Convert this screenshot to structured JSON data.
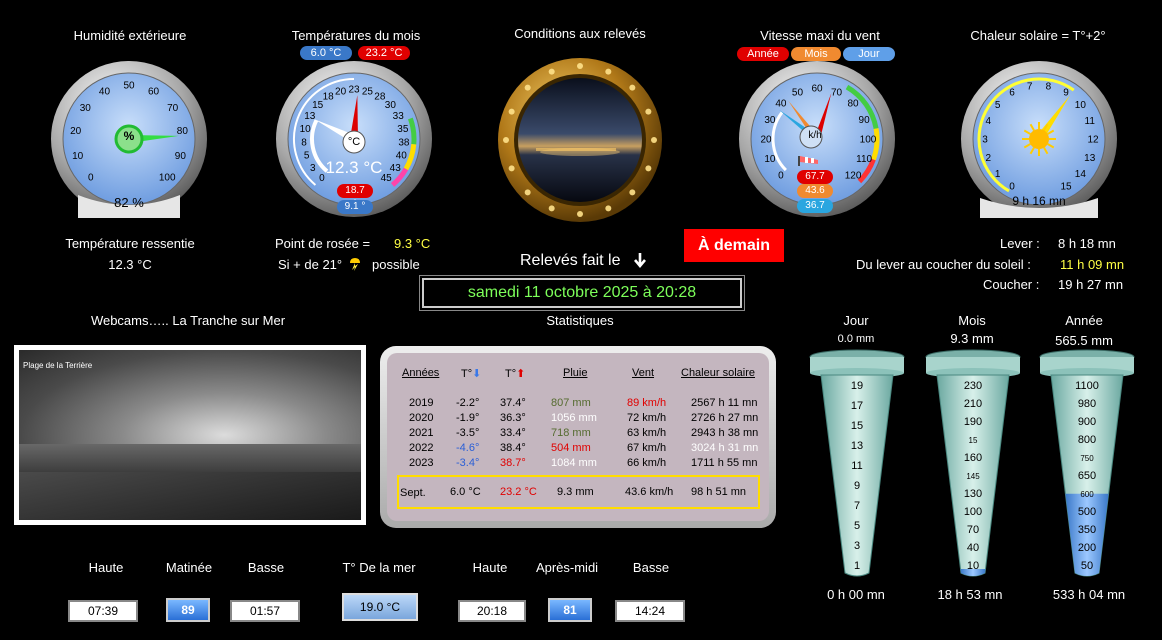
{
  "humidity": {
    "title": "Humidité extérieure",
    "unit": "%",
    "value": 82,
    "value_text": "82 %",
    "ticks": [
      "0",
      "10",
      "20",
      "30",
      "40",
      "50",
      "60",
      "70",
      "80",
      "90",
      "100"
    ]
  },
  "temp_month": {
    "title": "Températures du mois",
    "min": "6.0 °C",
    "max": "23.2 °C",
    "unit": "°C",
    "current": "12.3 °C",
    "current_value": 12.3,
    "max_value": 23.2,
    "badge_high": "18.7 °",
    "badge_low": "9.1 °",
    "ticks": [
      "0",
      "3",
      "5",
      "8",
      "10",
      "13",
      "15",
      "18",
      "20",
      "23",
      "25",
      "28",
      "30",
      "33",
      "35",
      "38",
      "40",
      "43",
      "45"
    ]
  },
  "conditions": {
    "title": "Conditions aux relevés"
  },
  "wind": {
    "title": "Vitesse maxi du vent",
    "labels": [
      "Année",
      "Mois",
      "Jour"
    ],
    "unit": "k/h",
    "value": 36.7,
    "badges": [
      "67.7",
      "43.6",
      "36.7"
    ],
    "ticks": [
      "0",
      "10",
      "20",
      "30",
      "40",
      "50",
      "60",
      "70",
      "80",
      "90",
      "100",
      "110",
      "120"
    ]
  },
  "solar": {
    "title": "Chaleur solaire = T°+2°",
    "value_text": "9 h 16 mn",
    "value": 9.27,
    "ticks": [
      "0",
      "1",
      "2",
      "3",
      "4",
      "5",
      "6",
      "7",
      "8",
      "9",
      "10",
      "11",
      "12",
      "13",
      "14",
      "15"
    ]
  },
  "felt_temp": {
    "label": "Température ressentie",
    "value": "12.3 °C"
  },
  "dew_point": {
    "label": "Point de rosée  =",
    "value": "9.3 °C",
    "storm_prefix": "Si + de 21°",
    "storm_suffix": "possible"
  },
  "reading": {
    "label": "Relevés fait le",
    "date": "samedi 11 octobre 2025 à 20:28"
  },
  "tomorrow_button": "À demain",
  "sun": {
    "rise_label": "Lever :",
    "rise": "8 h 18 mn",
    "duration_label": "Du lever au coucher du soleil :",
    "duration": "11 h 09 mn",
    "set_label": "Coucher :",
    "set": "19 h 27 mn"
  },
  "webcam": {
    "title": "Webcams….. La Tranche sur Mer",
    "caption": "Plage de la Terrière"
  },
  "stats": {
    "title": "Statistiques",
    "headers": [
      "Années",
      "T°",
      "T°",
      "Pluie",
      "Vent",
      "Chaleur solaire"
    ],
    "rows": [
      {
        "year": "2019",
        "tmin": "-2.2°",
        "tmax": "37.4°",
        "rain": "807 mm",
        "wind": "89 km/h",
        "solar": "2567 h 11 mn"
      },
      {
        "year": "2020",
        "tmin": "-1.9°",
        "tmax": "36.3°",
        "rain": "1056 mm",
        "wind": "72 km/h",
        "solar": "2726 h 27 mn"
      },
      {
        "year": "2021",
        "tmin": "-3.5°",
        "tmax": "33.4°",
        "rain": "718 mm",
        "wind": "63 km/h",
        "solar": "2943 h 38 mn"
      },
      {
        "year": "2022",
        "tmin": "-4.6°",
        "tmax": "38.4°",
        "rain": "504 mm",
        "wind": "67 km/h",
        "solar": "3024 h 31 mn"
      },
      {
        "year": "2023",
        "tmin": "-3.4°",
        "tmax": "38.7°",
        "rain": "1084 mm",
        "wind": "66 km/h",
        "solar": "1711 h 55 mn"
      }
    ],
    "month": {
      "label": "Sept.",
      "tmin": "6.0 °C",
      "tmax": "23.2 °C",
      "rain": "9.3 mm",
      "wind": "43.6 km/h",
      "solar": "98 h 51 mn"
    }
  },
  "rain": {
    "day": {
      "label": "Jour",
      "value": "0.0 mm",
      "time": "0 h 00 mn",
      "fill": 0.0,
      "scale": [
        "19",
        "17",
        "15",
        "13",
        "11",
        "9",
        "7",
        "5",
        "3",
        "1"
      ]
    },
    "month": {
      "label": "Mois",
      "value": "9.3 mm",
      "time": "18 h 53 mn",
      "fill": 0.02,
      "scale": [
        "230",
        "210",
        "190",
        "15",
        "160",
        "145",
        "130",
        "100",
        "70",
        "40",
        "10"
      ]
    },
    "year": {
      "label": "Année",
      "value": "565.5 mm",
      "time": "533 h 04 mn",
      "fill": 0.4,
      "scale": [
        "1100",
        "980",
        "900",
        "800",
        "750",
        "650",
        "600",
        "500",
        "350",
        "200",
        "50"
      ]
    }
  },
  "tide": {
    "high_label": "Haute",
    "morning_label": "Matinée",
    "low_label": "Basse",
    "sea_label": "T° De la mer",
    "afternoon_label": "Après-midi",
    "morning_high": "07:39",
    "morning_coef": "89",
    "morning_low": "01:57",
    "sea_temp": "19.0 °C",
    "afternoon_high": "20:18",
    "afternoon_coef": "81",
    "afternoon_low": "14:24"
  },
  "colors": {
    "green_text": "#7dff5a",
    "yellow_text": "#ffff44",
    "red_button": "#ff0000",
    "gauge_face": "#8fb8f0"
  }
}
